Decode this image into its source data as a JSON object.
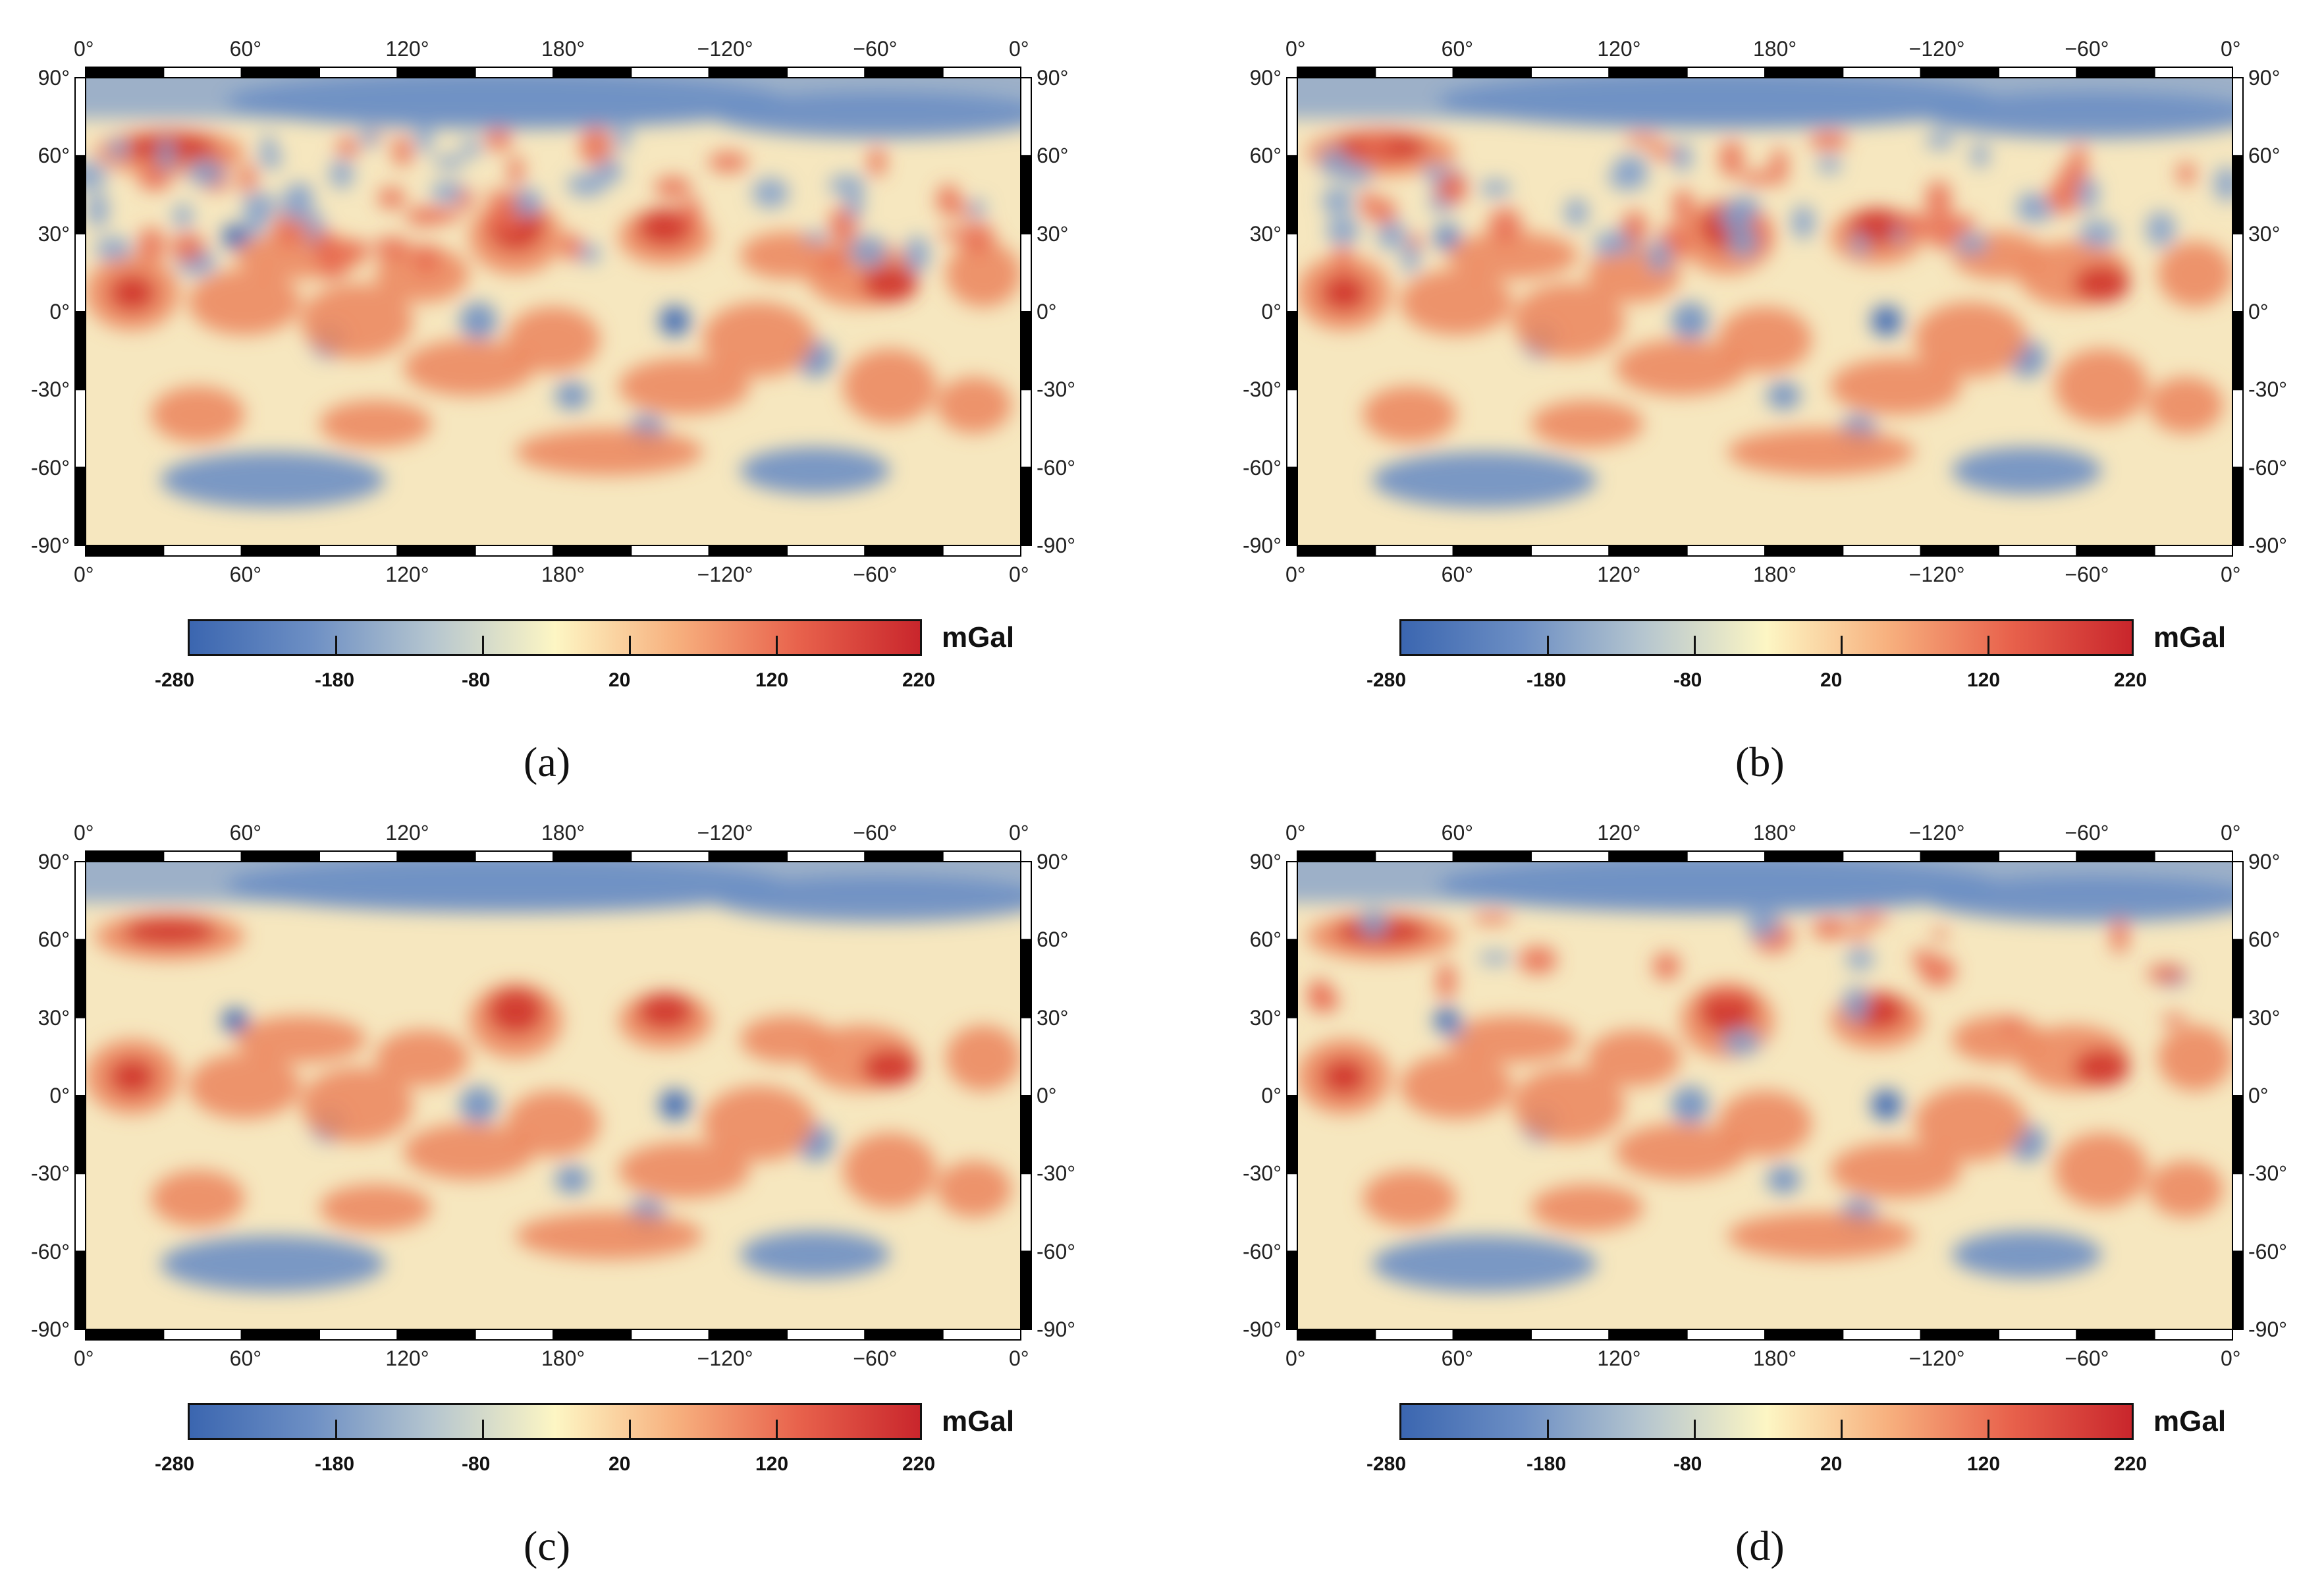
{
  "figure": {
    "longitude_ticks": [
      "0°",
      "60°",
      "120°",
      "180°",
      "−120°",
      "−60°",
      "0°"
    ],
    "latitude_ticks": [
      "90°",
      "60°",
      "30°",
      "0°",
      "-30°",
      "-60°",
      "-90°"
    ],
    "colorbar": {
      "ticks": [
        "-280",
        "-180",
        "-80",
        "20",
        "120",
        "220"
      ],
      "unit": "mGal",
      "range": [
        -280,
        220
      ],
      "colors": [
        "#3b66b0",
        "#6d8fc4",
        "#b6c6cf",
        "#fdf6c4",
        "#f7b07e",
        "#e8624c",
        "#c9262c"
      ]
    }
  },
  "panels": [
    {
      "label": "(a)"
    },
    {
      "label": "(b)"
    },
    {
      "label": "(c)"
    },
    {
      "label": "(d)"
    }
  ]
}
